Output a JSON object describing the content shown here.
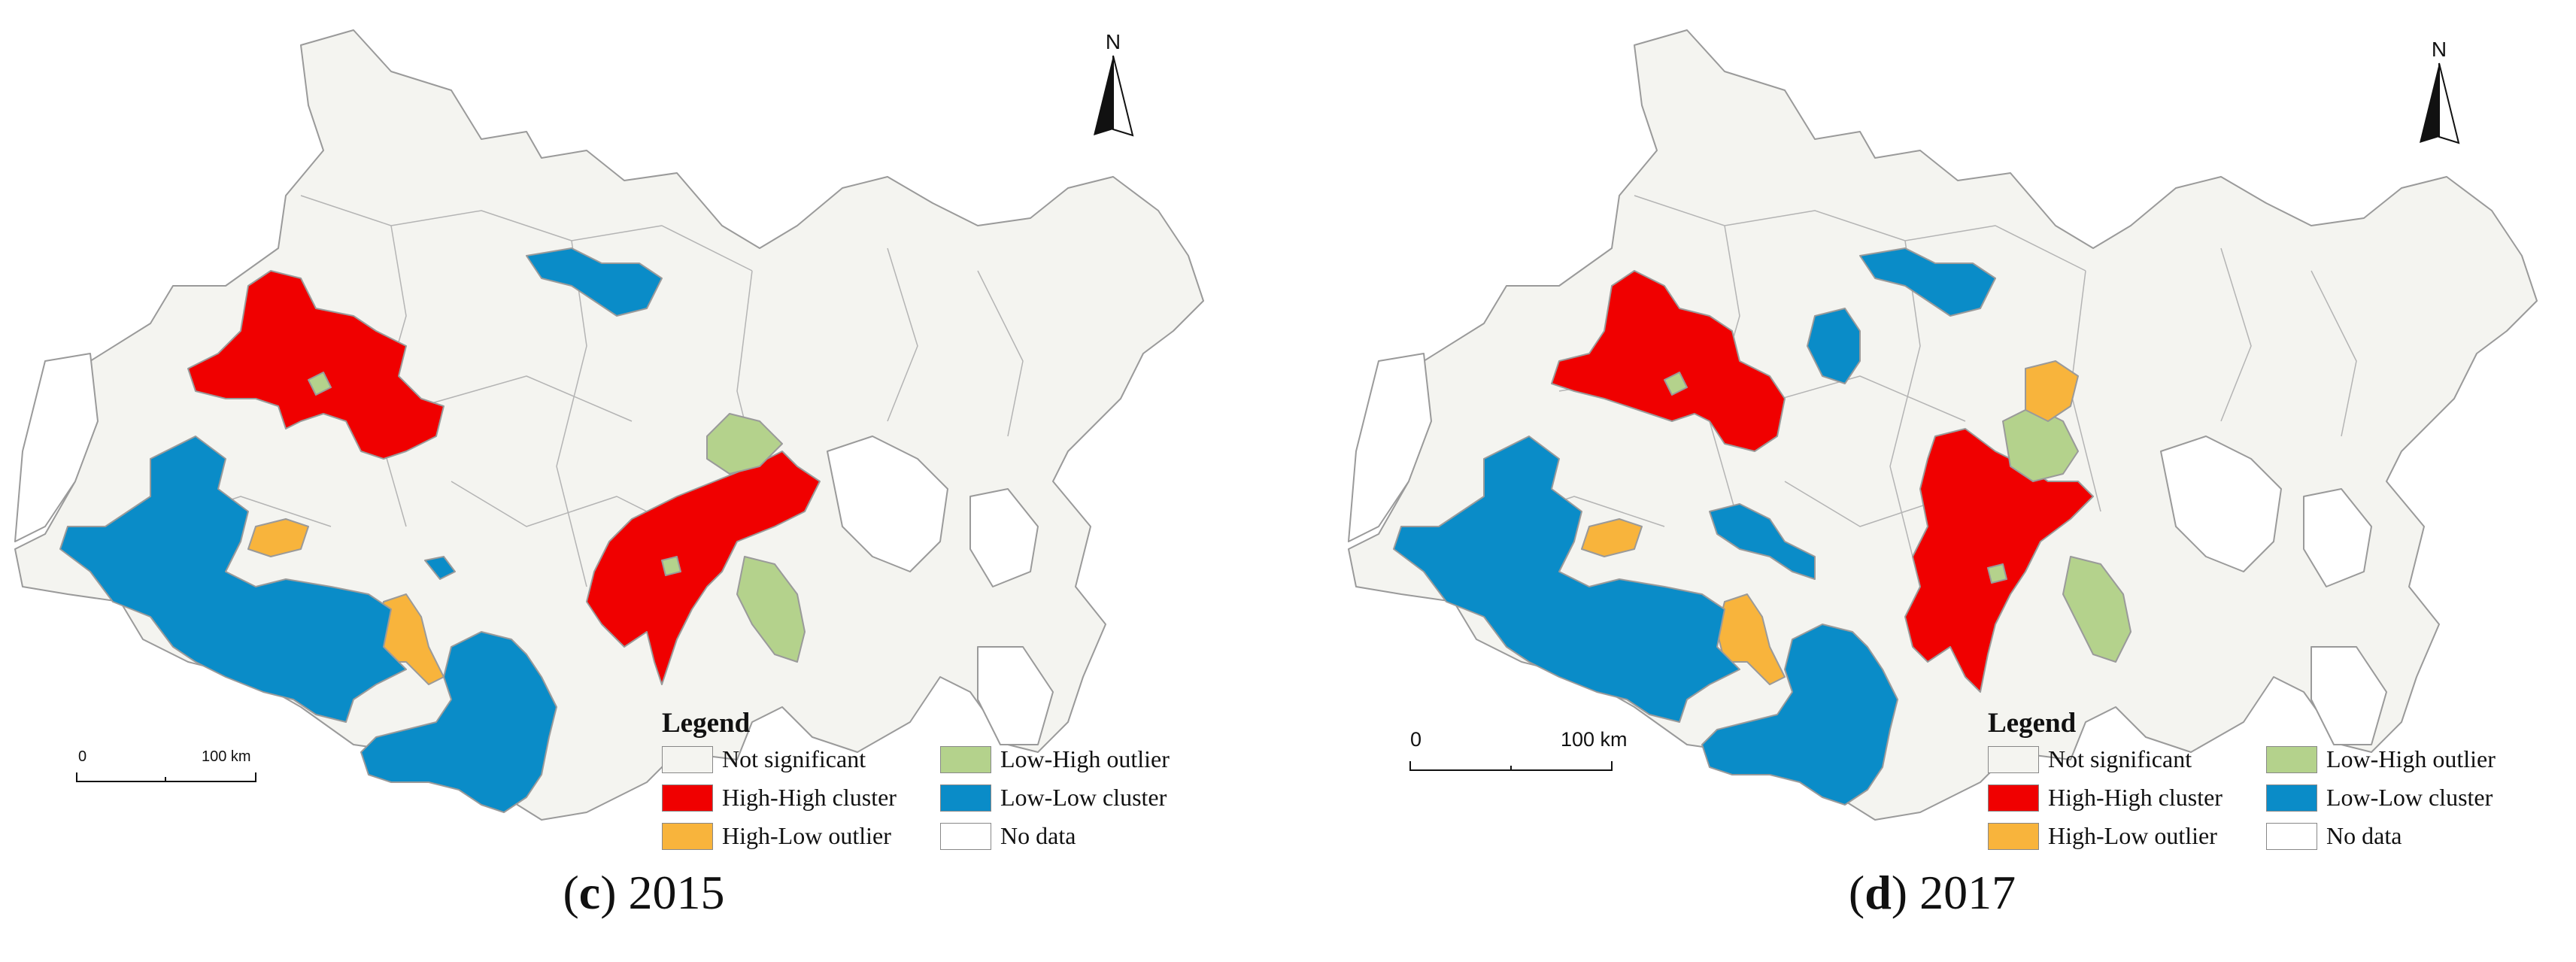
{
  "colors": {
    "not_significant": "#f4f4f0",
    "high_high": "#f00000",
    "high_low": "#f8b43c",
    "low_high": "#b4d28c",
    "low_low": "#0a8cc8",
    "no_data": "#ffffff",
    "boundary": "#9a9a9a"
  },
  "legend": {
    "title": "Legend",
    "items": [
      {
        "label": "Not significant",
        "color_key": "not_significant"
      },
      {
        "label": "Low-High outlier",
        "color_key": "low_high"
      },
      {
        "label": "High-High cluster",
        "color_key": "high_high"
      },
      {
        "label": "Low-Low cluster",
        "color_key": "low_low"
      },
      {
        "label": "High-Low outlier",
        "color_key": "high_low"
      },
      {
        "label": "No data",
        "color_key": "no_data"
      }
    ]
  },
  "north_arrow": {
    "label": "N",
    "icon": "north-arrow-icon"
  },
  "panels": [
    {
      "letter": "c",
      "year": "2015",
      "scalebar": {
        "start_label": "0",
        "end_label": "100 km"
      }
    },
    {
      "letter": "d",
      "year": "2017",
      "scalebar": {
        "start_label": "0",
        "end_label": "100 km"
      }
    }
  ]
}
